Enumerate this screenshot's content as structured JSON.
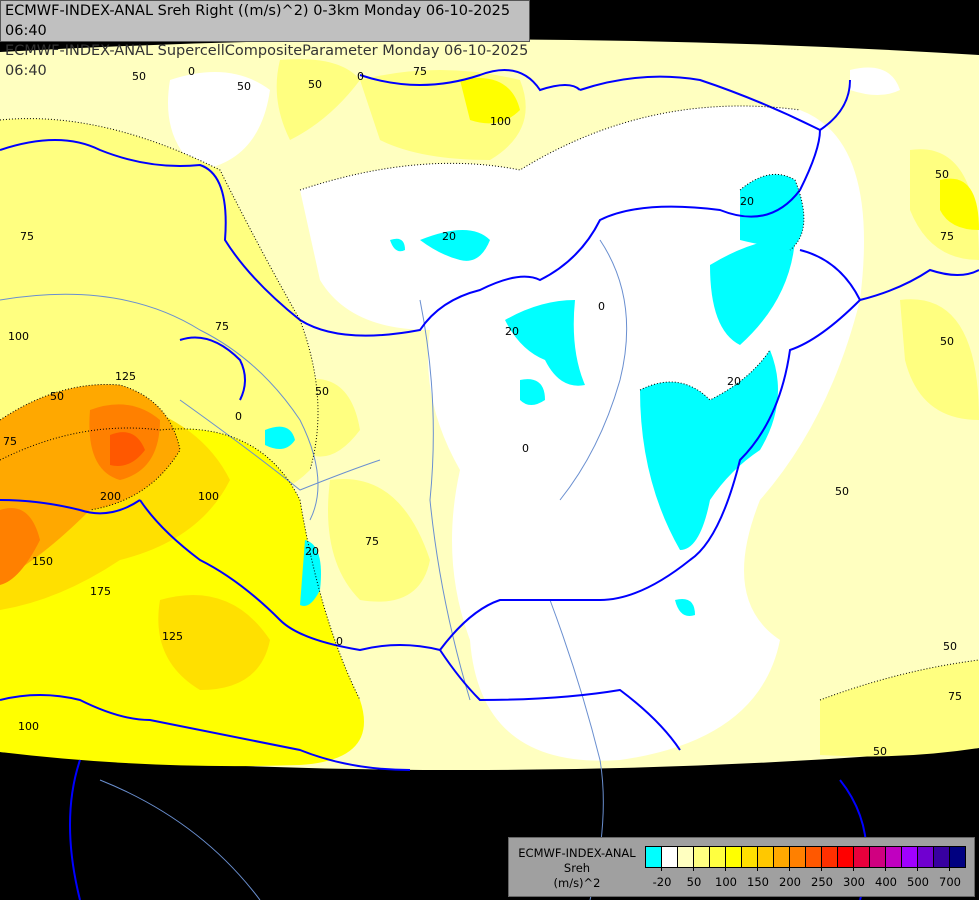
{
  "header": {
    "line1": "ECMWF-INDEX-ANAL Sreh Right ((m/s)^2) 0-3km Monday 06-10-2025 06:40",
    "line2": "ECMWF-INDEX-ANAL SupercellCompositeParameter Monday 06-10-2025 06:40"
  },
  "legend": {
    "model": "ECMWF-INDEX-ANAL",
    "variable": "Sreh",
    "unit": "(m/s)^2",
    "colors": [
      "#00ffff",
      "#ffffff",
      "#ffffc0",
      "#ffff80",
      "#ffff40",
      "#ffff00",
      "#ffe000",
      "#ffc800",
      "#ffa800",
      "#ff8000",
      "#ff5800",
      "#ff3000",
      "#ff0000",
      "#e8003c",
      "#d00080",
      "#c000c0",
      "#a000ff",
      "#7000d0",
      "#3800a0",
      "#000080"
    ],
    "tick_labels": [
      "-20",
      "50",
      "100",
      "150",
      "200",
      "250",
      "300",
      "400",
      "500",
      "700"
    ]
  },
  "map": {
    "background_color": "#000000",
    "border_color": "#0000ff",
    "river_color": "#6a8fd0",
    "contour_labels": [
      "50",
      "0",
      "50",
      "75",
      "100",
      "0",
      "50",
      "20",
      "20",
      "20",
      "75",
      "100",
      "75",
      "125",
      "150",
      "200",
      "100",
      "175",
      "125",
      "100",
      "50",
      "75",
      "50",
      "0",
      "20",
      "75",
      "0",
      "0",
      "20",
      "50",
      "50",
      "75",
      "50",
      "50",
      "75",
      "50",
      "0"
    ]
  }
}
